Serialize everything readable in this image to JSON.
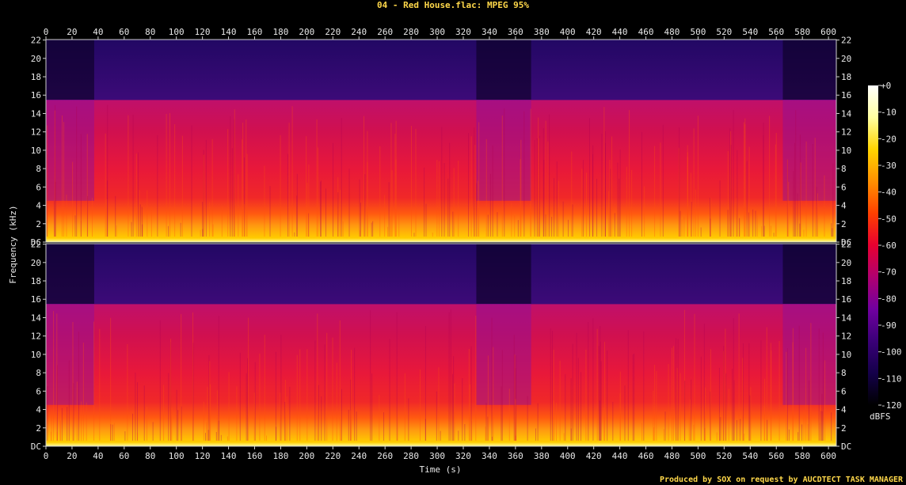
{
  "chart_data": {
    "type": "heatmap",
    "title": "04 - Red House.flac: MPEG 95%",
    "xlabel": "Time (s)",
    "ylabel": "Frequency (kHz)",
    "xlim": [
      0,
      606
    ],
    "ylim": [
      0,
      22.05
    ],
    "x_ticks": [
      0,
      20,
      40,
      60,
      80,
      100,
      120,
      140,
      160,
      180,
      200,
      220,
      240,
      260,
      280,
      300,
      320,
      340,
      360,
      380,
      400,
      420,
      440,
      460,
      480,
      500,
      520,
      540,
      560,
      580,
      600
    ],
    "y_ticks": [
      {
        "value": 0,
        "label": "DC"
      },
      {
        "value": 2,
        "label": "2"
      },
      {
        "value": 4,
        "label": "4"
      },
      {
        "value": 6,
        "label": "6"
      },
      {
        "value": 8,
        "label": "8"
      },
      {
        "value": 10,
        "label": "10"
      },
      {
        "value": 12,
        "label": "12"
      },
      {
        "value": 14,
        "label": "14"
      },
      {
        "value": 16,
        "label": "16"
      },
      {
        "value": 18,
        "label": "18"
      },
      {
        "value": 20,
        "label": "20"
      },
      {
        "value": 22,
        "label": "22"
      }
    ],
    "channels": [
      {
        "lowpass_cutoff_khz": 15.5
      },
      {
        "lowpass_cutoff_khz": 15.5
      }
    ],
    "colorbar": {
      "unit_label": "dBFS",
      "range": [
        -120,
        0
      ],
      "ticks": [
        "+0",
        "-10",
        "-20",
        "-30",
        "-40",
        "-50",
        "-60",
        "-70",
        "-80",
        "-90",
        "-100",
        "-110",
        "-120"
      ],
      "colors": [
        "#000000",
        "#14004a",
        "#3a0078",
        "#7000a0",
        "#b00070",
        "#e80030",
        "#ff4000",
        "#ff9000",
        "#ffd400",
        "#ffffa0",
        "#ffffff"
      ]
    },
    "credit": "Produced by SOX on request by AUCDTECT TASK MANAGER"
  }
}
